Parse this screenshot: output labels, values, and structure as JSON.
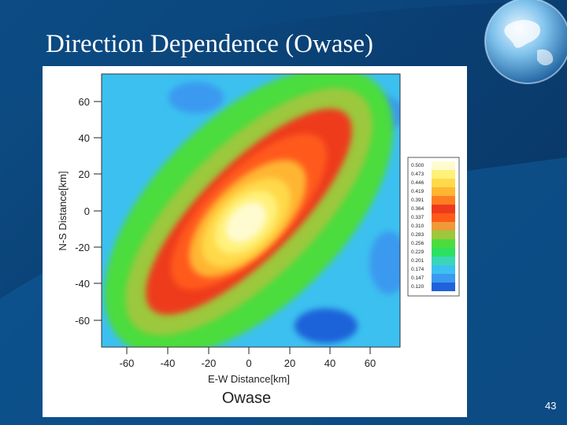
{
  "slide": {
    "title": "Direction Dependence  (Owase)",
    "page_number": "43"
  },
  "figure": {
    "caption": "Owase",
    "xlabel": "E-W Distance[km]",
    "ylabel": "N-S Distance[km]",
    "xticks": [
      "-60",
      "-40",
      "-20",
      "0",
      "20",
      "40",
      "60"
    ],
    "yticks": [
      "60",
      "40",
      "20",
      "0",
      "-20",
      "-40",
      "-60"
    ],
    "legend": [
      "0.500",
      "0.473",
      "0.446",
      "0.419",
      "0.391",
      "0.364",
      "0.337",
      "0.310",
      "0.283",
      "0.256",
      "0.229",
      "0.201",
      "0.174",
      "0.147",
      "0.120"
    ],
    "legend_colors": [
      "#fffbd0",
      "#fff17a",
      "#ffd94a",
      "#ffb531",
      "#ff7d22",
      "#ee3a1c",
      "#ff5a1a",
      "#ee9a38",
      "#9cc83c",
      "#4cdc3e",
      "#2ce060",
      "#3ad6b8",
      "#3cc0f0",
      "#3a9aef",
      "#1f62d9"
    ]
  }
}
